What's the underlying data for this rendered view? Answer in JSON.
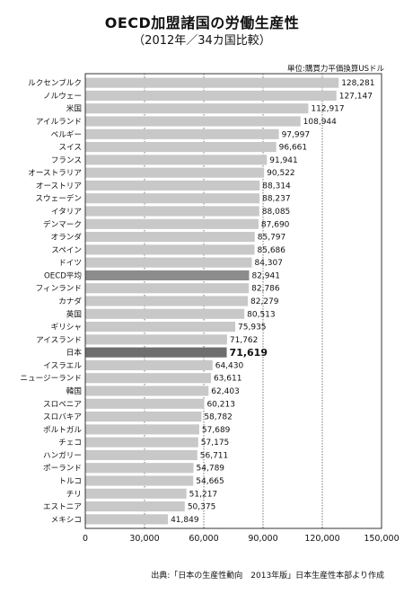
{
  "chart_data": {
    "type": "bar",
    "orientation": "horizontal",
    "title": "OECD加盟諸国の労働生産性",
    "subtitle": "（2012年／34カ国比較）",
    "unit_note": "単位:購買力平価換算USドル",
    "source": "出典:「日本の生産性動向　2013年版」日本生産性本部より作成",
    "categories": [
      "ルクセンブルク",
      "ノルウェー",
      "米国",
      "アイルランド",
      "ベルギー",
      "スイス",
      "フランス",
      "オーストラリア",
      "オーストリア",
      "スウェーデン",
      "イタリア",
      "デンマーク",
      "オランダ",
      "スペイン",
      "ドイツ",
      "OECD平均",
      "フィンランド",
      "カナダ",
      "英国",
      "ギリシャ",
      "アイスランド",
      "日本",
      "イスラエル",
      "ニュージーランド",
      "韓国",
      "スロベニア",
      "スロバキア",
      "ポルトガル",
      "チェコ",
      "ハンガリー",
      "ポーランド",
      "トルコ",
      "チリ",
      "エストニア",
      "メキシコ"
    ],
    "values": [
      128281,
      127147,
      112917,
      108944,
      97997,
      96661,
      91941,
      90522,
      88314,
      88237,
      88085,
      87690,
      85797,
      85686,
      84307,
      82941,
      82786,
      82279,
      80513,
      75935,
      71762,
      71619,
      64430,
      63611,
      62403,
      60213,
      58782,
      57689,
      57175,
      56711,
      54789,
      54665,
      51217,
      50375,
      41849
    ],
    "value_labels": [
      "128,281",
      "127,147",
      "112,917",
      "108,944",
      "97,997",
      "96,661",
      "91,941",
      "90,522",
      "88,314",
      "88,237",
      "88,085",
      "87,690",
      "85,797",
      "85,686",
      "84,307",
      "82,941",
      "82,786",
      "82,279",
      "80,513",
      "75,935",
      "71,762",
      "71,619",
      "64,430",
      "63,611",
      "62,403",
      "60,213",
      "58,782",
      "57,689",
      "57,175",
      "56,711",
      "54,789",
      "54,665",
      "51,217",
      "50,375",
      "41,849"
    ],
    "highlight": {
      "OECD平均": "#8c8c8c",
      "日本": "#6e6e6e"
    },
    "bar_color": "#c8c8c8",
    "xlim": [
      0,
      150000
    ],
    "xticks": [
      0,
      30000,
      60000,
      90000,
      120000,
      150000
    ],
    "xtick_labels": [
      "0",
      "30,000",
      "60,000",
      "90,000",
      "120,000",
      "150,000"
    ],
    "grid": "vertical dashed"
  }
}
